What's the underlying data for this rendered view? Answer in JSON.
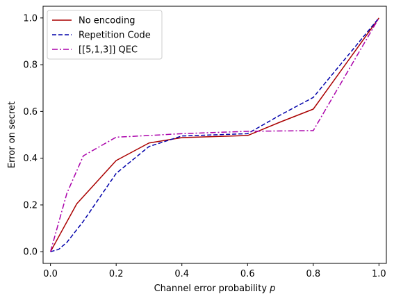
{
  "chart_data": {
    "type": "line",
    "xlabel": "Channel error probability",
    "xlabel_var": "p",
    "ylabel": "Error on secret",
    "xlim": [
      -0.0225,
      1.0225
    ],
    "ylim": [
      -0.05,
      1.05
    ],
    "x_ticks": [
      0.0,
      0.2,
      0.4,
      0.6,
      0.8,
      1.0
    ],
    "y_ticks": [
      0.0,
      0.2,
      0.4,
      0.6,
      0.8,
      1.0
    ],
    "x_tick_labels": [
      "0.0",
      "0.2",
      "0.4",
      "0.6",
      "0.8",
      "1.0"
    ],
    "y_tick_labels": [
      "0.0",
      "0.2",
      "0.4",
      "0.6",
      "0.8",
      "1.0"
    ],
    "grid": false,
    "legend_position": "top-left",
    "series": [
      {
        "name": "No encoding",
        "color": "#aa0000",
        "dash": "solid",
        "x": [
          0.0,
          0.08,
          0.2,
          0.3,
          0.4,
          0.6,
          0.7,
          0.8,
          1.0
        ],
        "y": [
          0.0,
          0.205,
          0.39,
          0.465,
          0.488,
          0.497,
          0.555,
          0.61,
          1.0
        ]
      },
      {
        "name": "Repetition Code",
        "color": "#0000aa",
        "dash": "dashed",
        "x": [
          0.0,
          0.025,
          0.05,
          0.1,
          0.2,
          0.3,
          0.4,
          0.5,
          0.6,
          0.7,
          0.8,
          1.0
        ],
        "y": [
          0.0,
          0.01,
          0.04,
          0.13,
          0.335,
          0.45,
          0.495,
          0.5,
          0.505,
          0.585,
          0.66,
          1.0
        ]
      },
      {
        "name": "[[5,1,3]] QEC",
        "color": "#aa00aa",
        "dash": "dashdot",
        "x": [
          0.0,
          0.05,
          0.1,
          0.2,
          0.3,
          0.4,
          0.5,
          0.6,
          0.8,
          1.0
        ],
        "y": [
          0.0,
          0.25,
          0.41,
          0.49,
          0.497,
          0.505,
          0.51,
          0.515,
          0.518,
          1.0
        ]
      }
    ]
  }
}
